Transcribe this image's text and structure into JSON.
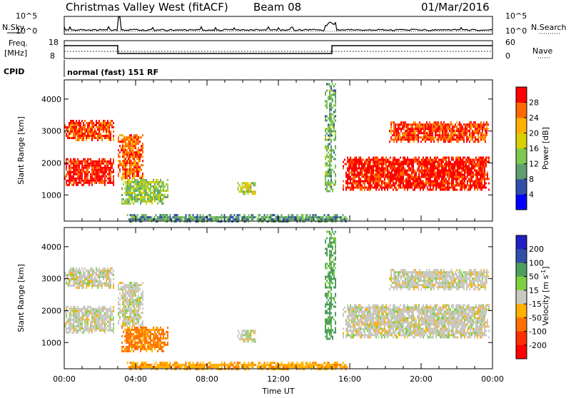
{
  "header": {
    "title": "Christmas Valley West (fitACF)",
    "beam": "Beam 08",
    "date": "01/Mar/2016"
  },
  "top_panels": {
    "nsky_label": "N.Sky",
    "nsearch_label": "N.Search",
    "noise_ticks": [
      "10^5",
      "10^0"
    ],
    "freq_label_1": "Freq.",
    "freq_label_2": "[MHz]",
    "freq_ticks": [
      "18",
      "8"
    ],
    "nave_label": "Nave",
    "nave_ticks": [
      "60",
      "0"
    ],
    "cpid_label": "CPID",
    "cpid_text": "normal (fast) 151 RF"
  },
  "colors": {
    "power_colorbar": [
      "#0000ff",
      "#2f4fa8",
      "#5f9e6e",
      "#7ec850",
      "#d8d000",
      "#ffb000",
      "#ff6a00",
      "#ff0000"
    ],
    "velocity_colorbar": [
      "#2020c0",
      "#2f4fa8",
      "#4e9e5e",
      "#7ed040",
      "#c8c8c0",
      "#ffb000",
      "#ff7000",
      "#ff3000",
      "#ff0000"
    ],
    "ground_scatter": "#c8c8c0"
  },
  "chart_data": [
    {
      "type": "heatmap",
      "panel": "power",
      "xlabel": "",
      "ylabel": "Slant Range [km]",
      "xlim": [
        0,
        24
      ],
      "ylim": [
        180,
        4600
      ],
      "yticks": [
        "1000",
        "2000",
        "3000",
        "4000"
      ],
      "colorbar": {
        "label": "Power [dB]",
        "ticks": [
          "4",
          "8",
          "12",
          "16",
          "20",
          "24",
          "28"
        ],
        "range": [
          0,
          32
        ]
      },
      "regions": [
        {
          "t0": 0.0,
          "t1": 2.8,
          "r0": 1300,
          "r1": 2150,
          "value": 30
        },
        {
          "t0": 0.0,
          "t1": 2.8,
          "r0": 2700,
          "r1": 3350,
          "value": 28
        },
        {
          "t0": 3.0,
          "t1": 4.4,
          "r0": 1500,
          "r1": 2900,
          "value": 26
        },
        {
          "t0": 3.2,
          "t1": 5.8,
          "r0": 700,
          "r1": 1500,
          "value": 14
        },
        {
          "t0": 9.7,
          "t1": 10.7,
          "r0": 1050,
          "r1": 1400,
          "value": 16
        },
        {
          "t0": 3.5,
          "t1": 15.9,
          "r0": 180,
          "r1": 400,
          "value": 10
        },
        {
          "t0": 14.6,
          "t1": 15.2,
          "r0": 1100,
          "r1": 4500,
          "value": 12
        },
        {
          "t0": 15.6,
          "t1": 23.8,
          "r0": 1150,
          "r1": 2200,
          "value": 30
        },
        {
          "t0": 18.2,
          "t1": 23.8,
          "r0": 2650,
          "r1": 3300,
          "value": 28
        }
      ]
    },
    {
      "type": "heatmap",
      "panel": "velocity",
      "xlabel": "Time UT",
      "ylabel": "Slant Range [km]",
      "xlim": [
        0,
        24
      ],
      "ylim": [
        180,
        4600
      ],
      "xticks": [
        "00:00",
        "04:00",
        "08:00",
        "12:00",
        "16:00",
        "20:00",
        "00:00"
      ],
      "yticks": [
        "1000",
        "2000",
        "3000",
        "4000"
      ],
      "colorbar": {
        "label": "Velocity [m s",
        "label_sup": "-1",
        "label_end": "]",
        "ticks": [
          "200",
          "100",
          "50",
          "15",
          "-15",
          "-50",
          "-100",
          "-200"
        ]
      },
      "regions": [
        {
          "t0": 0.0,
          "t1": 2.8,
          "r0": 1300,
          "r1": 2150,
          "value": 0
        },
        {
          "t0": 0.0,
          "t1": 2.8,
          "r0": 2700,
          "r1": 3350,
          "value": 0
        },
        {
          "t0": 3.0,
          "t1": 4.4,
          "r0": 1500,
          "r1": 2900,
          "value": 0
        },
        {
          "t0": 3.2,
          "t1": 5.8,
          "r0": 700,
          "r1": 1500,
          "value": -60
        },
        {
          "t0": 9.7,
          "t1": 10.7,
          "r0": 1050,
          "r1": 1400,
          "value": 0
        },
        {
          "t0": 3.5,
          "t1": 15.9,
          "r0": 180,
          "r1": 400,
          "value": -40
        },
        {
          "t0": 14.6,
          "t1": 15.2,
          "r0": 1100,
          "r1": 4500,
          "value": 40
        },
        {
          "t0": 15.6,
          "t1": 23.8,
          "r0": 1150,
          "r1": 2200,
          "value": 0
        },
        {
          "t0": 18.2,
          "t1": 23.8,
          "r0": 2650,
          "r1": 3300,
          "value": 0
        }
      ]
    }
  ]
}
